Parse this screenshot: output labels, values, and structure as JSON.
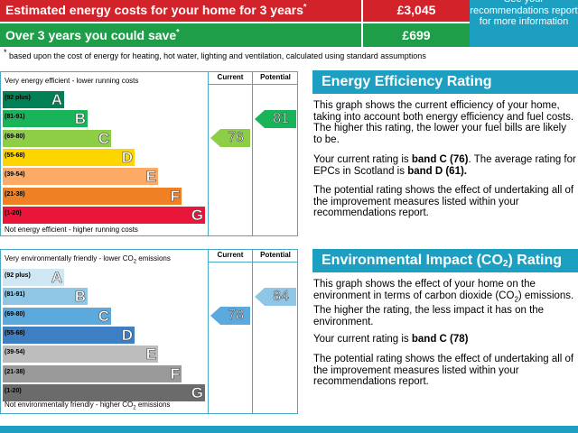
{
  "costs": {
    "estimated_label": "Estimated energy costs for your home for 3 years",
    "estimated_mark": "*",
    "estimated_value": "£3,045",
    "save_label": "Over 3 years you could save",
    "save_mark": "*",
    "save_value": "£699",
    "recommendations_text": "See your recommendations report for more information",
    "footnote_mark": "*",
    "footnote": " based upon the cost of energy for heating, hot water, lighting and ventilation, calculated using standard assumptions",
    "colors": {
      "estimated": "#d2232a",
      "save": "#1e9e48",
      "recommend": "#1d9fc1"
    }
  },
  "energy_chart": {
    "top_text": "Very energy efficient - lower running costs",
    "bottom_text": "Not energy efficient - higher running costs",
    "current_header": "Current",
    "potential_header": "Potential",
    "bands": [
      {
        "range": "(92 plus)",
        "letter": "A",
        "color": "#008054"
      },
      {
        "range": "(81-91)",
        "letter": "B",
        "color": "#19b459"
      },
      {
        "range": "(69-80)",
        "letter": "C",
        "color": "#8dce46"
      },
      {
        "range": "(55-68)",
        "letter": "D",
        "color": "#ffd500"
      },
      {
        "range": "(39-54)",
        "letter": "E",
        "color": "#fcaa65"
      },
      {
        "range": "(21-38)",
        "letter": "F",
        "color": "#ef8023"
      },
      {
        "range": "(1-20)",
        "letter": "G",
        "color": "#e9153b"
      }
    ],
    "current": {
      "value": "76",
      "band": "C",
      "color": "#8dce46"
    },
    "potential": {
      "value": "81",
      "band": "B",
      "color": "#19b459"
    }
  },
  "env_chart": {
    "top_text_pre": "Very environmentally friendly - lower CO",
    "top_text_sub": "2",
    "top_text_post": " emissions",
    "bottom_text_pre": "Not environmentally friendly - higher CO",
    "bottom_text_sub": "2",
    "bottom_text_post": " emissions",
    "current_header": "Current",
    "potential_header": "Potential",
    "bands": [
      {
        "range": "(92 plus)",
        "letter": "A",
        "color": "#cfe6f3"
      },
      {
        "range": "(81-91)",
        "letter": "B",
        "color": "#8fc6e6"
      },
      {
        "range": "(69-80)",
        "letter": "C",
        "color": "#5ca9dd"
      },
      {
        "range": "(55-68)",
        "letter": "D",
        "color": "#3d7fc2"
      },
      {
        "range": "(39-54)",
        "letter": "E",
        "color": "#bdbdbd"
      },
      {
        "range": "(21-38)",
        "letter": "F",
        "color": "#9a9a9a"
      },
      {
        "range": "(1-20)",
        "letter": "G",
        "color": "#6b6b6b"
      }
    ],
    "current": {
      "value": "78",
      "band": "C",
      "color": "#5ca9dd"
    },
    "potential": {
      "value": "84",
      "band": "B",
      "color": "#8fc6e6"
    }
  },
  "eer_section": {
    "title": "Energy Efficiency Rating",
    "p1": "This graph shows the current efficiency of your home, taking into account both energy efficiency and fuel costs. The higher this rating, the lower your fuel bills are likely to be.",
    "p2_pre": "Your current rating is ",
    "p2_bold1": "band C (76)",
    "p2_mid": ". The average rating for EPCs in Scotland is ",
    "p2_bold2": "band D (61).",
    "p3": "The potential rating shows the effect of undertaking all of the improvement measures listed within your recommendations report."
  },
  "eir_section": {
    "title_pre": "Environmental Impact (CO",
    "title_sub": "2",
    "title_post": ") Rating",
    "p1_pre": "This graph shows the effect of your home on the environment in terms of carbon dioxide (CO",
    "p1_sub": "2",
    "p1_post": ") emissions. The higher the rating, the less impact it has on the environment.",
    "p2_pre": "Your current rating is ",
    "p2_bold": "band C (78)",
    "p3": "The potential rating shows the effect of undertaking all of the improvement measures listed within your recommendations report."
  }
}
